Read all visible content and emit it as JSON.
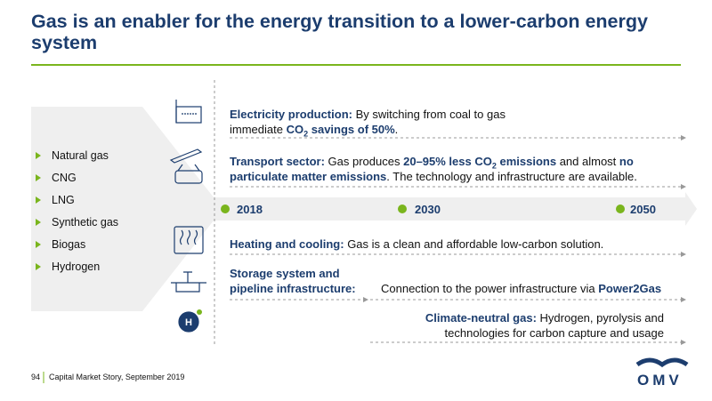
{
  "header": {
    "title": "Gas is an enabler for the energy transition to a lower-carbon energy system"
  },
  "gases": [
    "Natural gas",
    "CNG",
    "LNG",
    "Synthetic gas",
    "Biogas",
    "Hydrogen"
  ],
  "timeline": [
    "2018",
    "2030",
    "2050"
  ],
  "rows": [
    [
      "Electricity production:",
      "By switching from coal to gas immediate",
      "CO",
      "2",
      "savings of 50%",
      "."
    ],
    [
      "Transport sector:",
      "Gas produces",
      "20–95% less CO",
      "2",
      "emissions",
      "and almost",
      "no particulate matter emissions",
      ". The technology and infrastructure are available."
    ],
    [
      "Heating and cooling:",
      "Gas is a clean and affordable low-carbon solution."
    ],
    [
      "Storage system and pipeline infrastructure:",
      "Connection to the power infrastructure via",
      "Power2Gas"
    ],
    [
      "Climate-neutral gas:",
      "Hydrogen, pyrolysis and technologies for carbon capture and usage"
    ]
  ],
  "footer": {
    "page": "94",
    "text": "Capital Market Story, September 2019",
    "logo": "OMV"
  }
}
